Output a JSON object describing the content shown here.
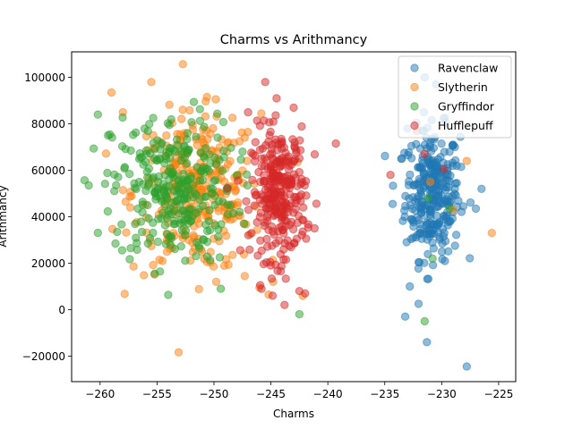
{
  "chart_data": {
    "type": "scatter",
    "title": "Charms vs Arithmancy",
    "xlabel": "Charms",
    "ylabel": "Arithmancy",
    "xlim": [
      -262.5,
      -223.5
    ],
    "ylim": [
      -31000,
      111000
    ],
    "xticks": [
      -260,
      -255,
      -250,
      -245,
      -240,
      -235,
      -230,
      -225
    ],
    "yticks": [
      -20000,
      0,
      20000,
      40000,
      60000,
      80000,
      100000
    ],
    "legend_position": "upper right",
    "grid": false,
    "marker_alpha": 0.5,
    "series": [
      {
        "name": "Ravenclaw",
        "color": "#1f77b4",
        "cloud": {
          "x_center": -230.8,
          "x_spread": 1.2,
          "y_center": 50000,
          "y_spread": 14000,
          "n": 300
        },
        "outliers": [
          [
            -233.2,
            -3000
          ],
          [
            -231.3,
            -14000
          ],
          [
            -227.8,
            -24500
          ],
          [
            -233.5,
            65000
          ],
          [
            -234.3,
            45500
          ],
          [
            -226.5,
            52000
          ],
          [
            -227.0,
            43500
          ],
          [
            -229.0,
            42000
          ],
          [
            -232.5,
            31000
          ],
          [
            -230.5,
            97000
          ],
          [
            -231.5,
            100000
          ],
          [
            -232.8,
            10000
          ],
          [
            -233.0,
            78000
          ],
          [
            -229.3,
            38000
          ]
        ]
      },
      {
        "name": "Slytherin",
        "color": "#ff7f0e",
        "cloud": {
          "x_center": -251.5,
          "x_spread": 2.8,
          "y_center": 50000,
          "y_spread": 17000,
          "n": 300
        },
        "outliers": [
          [
            -259.0,
            93500
          ],
          [
            -255.5,
            98000
          ],
          [
            -258.0,
            85000
          ],
          [
            -246.0,
            9500
          ],
          [
            -242.2,
            6000
          ],
          [
            -225.6,
            33000
          ],
          [
            -227.8,
            64000
          ],
          [
            -229.0,
            43000
          ],
          [
            -247.3,
            14500
          ],
          [
            -244.8,
            12000
          ],
          [
            -231.0,
            55000
          ],
          [
            -250.4,
            57000
          ]
        ]
      },
      {
        "name": "Gryffindor",
        "color": "#2ca02c",
        "cloud": {
          "x_center": -253.5,
          "x_spread": 2.7,
          "y_center": 52000,
          "y_spread": 16000,
          "n": 300
        },
        "outliers": [
          [
            -261.0,
            53500
          ],
          [
            -260.2,
            84000
          ],
          [
            -259.3,
            75000
          ],
          [
            -255.2,
            15500
          ],
          [
            -249.4,
            9000
          ],
          [
            -242.5,
            -2000
          ],
          [
            -231.5,
            -5000
          ],
          [
            -230.8,
            22000
          ],
          [
            -229.3,
            43500
          ],
          [
            -231.2,
            48000
          ],
          [
            -255.8,
            28500
          ],
          [
            -258.5,
            33500
          ]
        ]
      },
      {
        "name": "Hufflepuff",
        "color": "#d62728",
        "cloud": {
          "x_center": -244.3,
          "x_spread": 1.2,
          "y_center": 50000,
          "y_spread": 14000,
          "n": 300
        },
        "outliers": [
          [
            -245.5,
            98000
          ],
          [
            -239.3,
            71500
          ],
          [
            -243.8,
            2000
          ],
          [
            -242.5,
            8000
          ],
          [
            -242.0,
            7000
          ],
          [
            -247.0,
            85000
          ],
          [
            -232.2,
            77000
          ],
          [
            -231.5,
            67000
          ],
          [
            -234.5,
            58000
          ],
          [
            -229.8,
            60500
          ],
          [
            -244.5,
            91000
          ],
          [
            -243.0,
            87000
          ]
        ]
      }
    ]
  }
}
